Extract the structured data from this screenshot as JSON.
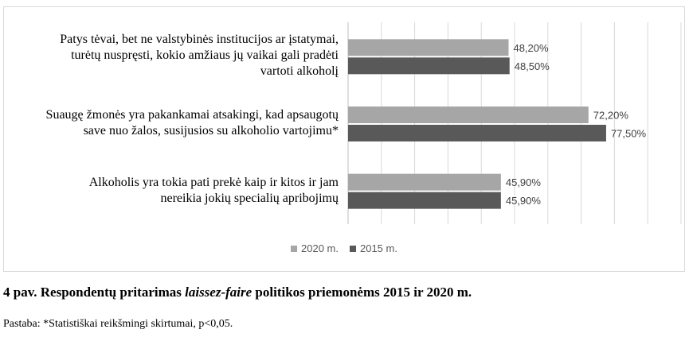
{
  "chart_data": {
    "type": "bar",
    "orientation": "horizontal",
    "categories": [
      "Patys tėvai, bet ne  valstybinės institucijos ar įstatymai, turėtų nuspręsti, kokio amžiaus jų vaikai gali pradėti vartoti alkoholį",
      "Suaugę žmonės yra pakankamai atsakingi, kad apsaugotų save nuo žalos, susijusios su alkoholio vartojimu*",
      "Alkoholis yra tokia pati prekė kaip ir kitos ir jam nereikia jokių specialių apribojimų"
    ],
    "category_lines": [
      [
        "Patys tėvai, bet ne  valstybinės institucijos ar įstatymai,",
        "turėtų nuspręsti, kokio amžiaus jų vaikai gali pradėti",
        "vartoti alkoholį"
      ],
      [
        "Suaugę žmonės yra pakankamai atsakingi, kad apsaugotų",
        "save nuo žalos, susijusios su alkoholio vartojimu*"
      ],
      [
        "Alkoholis yra tokia pati prekė kaip ir kitos ir jam",
        "nereikia jokių specialių apribojimų"
      ]
    ],
    "series": [
      {
        "name": "2020 m.",
        "color": "#a6a6a6",
        "values": [
          48.2,
          72.2,
          45.9
        ],
        "labels": [
          "48,20%",
          "72,20%",
          "45,90%"
        ]
      },
      {
        "name": "2015 m.",
        "color": "#595959",
        "values": [
          48.5,
          77.5,
          45.9
        ],
        "labels": [
          "48,50%",
          "77,50%",
          "45,90%"
        ]
      }
    ],
    "xlim": [
      0,
      100
    ],
    "grid": true,
    "legend_position": "bottom",
    "title": "",
    "xlabel": "",
    "ylabel": ""
  },
  "caption": {
    "prefix": "4 pav. Respondentų pritarimas ",
    "italic": "laissez-faire",
    "suffix": " politikos priemonėms 2015 ir 2020 m."
  },
  "note": "Pastaba: *Statistiškai reikšmingi skirtumai, p<0,05."
}
